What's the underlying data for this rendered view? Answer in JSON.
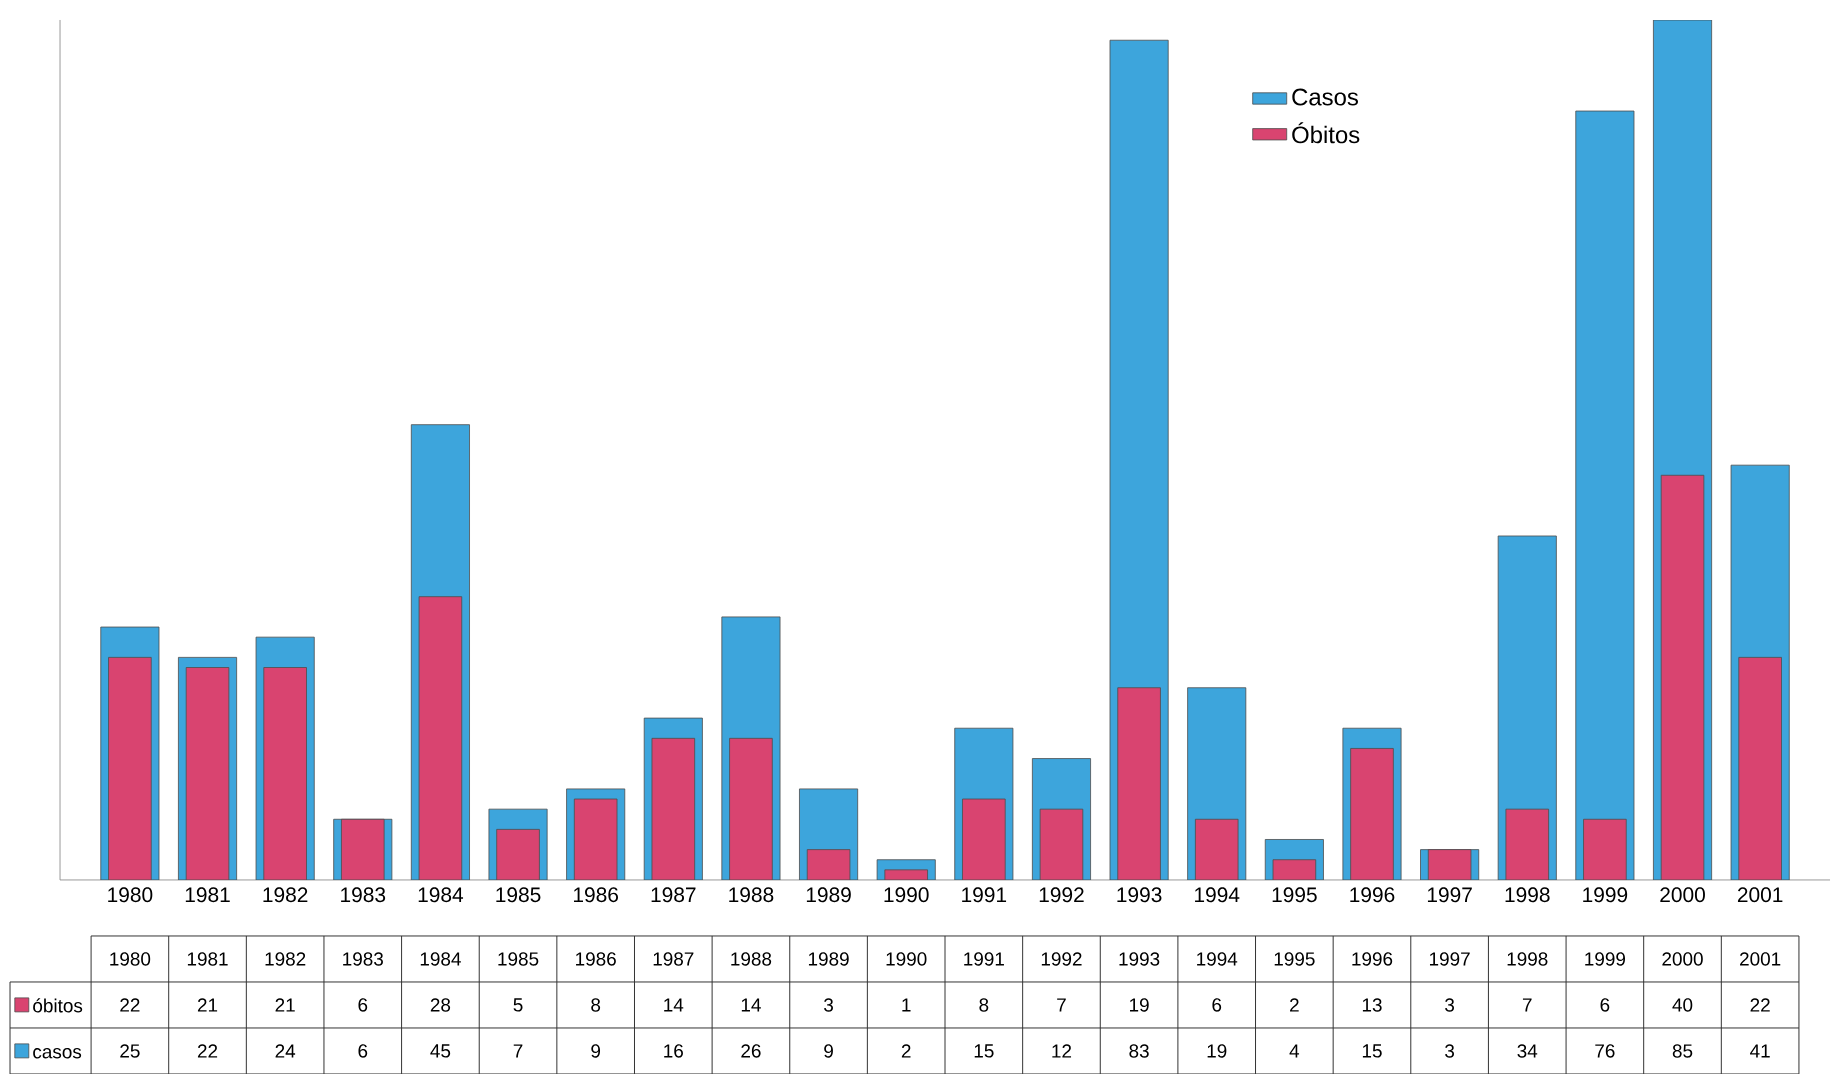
{
  "chart_data": {
    "type": "bar",
    "categories": [
      "1980",
      "1981",
      "1982",
      "1983",
      "1984",
      "1985",
      "1986",
      "1987",
      "1988",
      "1989",
      "1990",
      "1991",
      "1992",
      "1993",
      "1994",
      "1995",
      "1996",
      "1997",
      "1998",
      "1999",
      "2000",
      "2001"
    ],
    "series": [
      {
        "name": "Casos",
        "color": "#3da5dc",
        "values": [
          25,
          22,
          24,
          6,
          45,
          7,
          9,
          16,
          26,
          9,
          2,
          15,
          12,
          83,
          19,
          4,
          15,
          3,
          34,
          76,
          85,
          41
        ]
      },
      {
        "name": "Óbitos",
        "color": "#d94470",
        "values": [
          22,
          21,
          21,
          6,
          28,
          5,
          8,
          14,
          14,
          3,
          1,
          8,
          7,
          19,
          6,
          2,
          13,
          3,
          7,
          6,
          40,
          22
        ]
      }
    ],
    "annotations": [
      "óbitos",
      "casos"
    ],
    "data_labels": true,
    "legend": "top right",
    "tick_labels": "x"
  }
}
